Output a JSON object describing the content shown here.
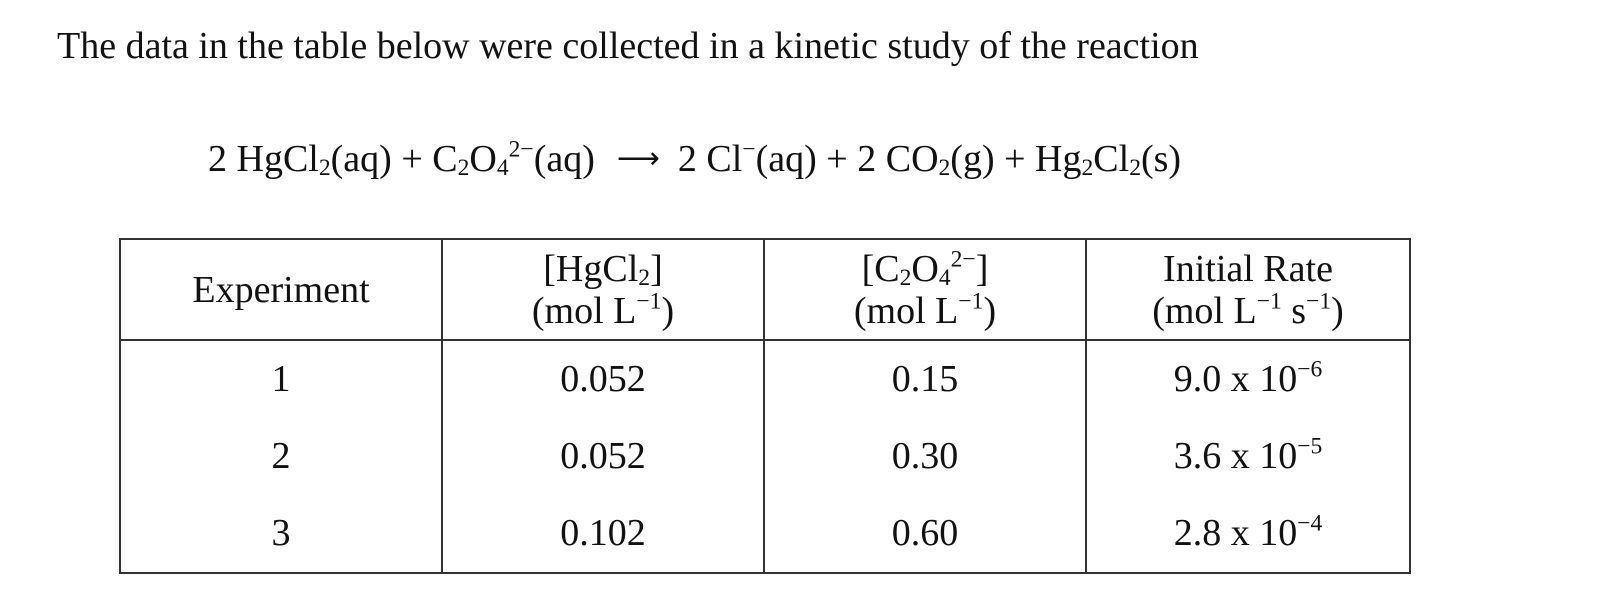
{
  "intro_text": "The data in the table below were collected in a kinetic study of the reaction",
  "equation": {
    "reactants": [
      {
        "coef": "2",
        "formula": "HgCl2",
        "state": "(aq)"
      },
      {
        "coef": "",
        "formula": "C2O4 2-",
        "state": "(aq)"
      }
    ],
    "arrow": "⟶",
    "products": [
      {
        "coef": "2",
        "formula": "Cl-",
        "state": "(aq)"
      },
      {
        "coef": "2",
        "formula": "CO2",
        "state": "(g)"
      },
      {
        "coef": "",
        "formula": "Hg2Cl2",
        "state": "(s)"
      }
    ],
    "parts": {
      "r1_coef": "2",
      "r1_a": "HgCl",
      "r1_sub": "2",
      "r1_state": "(aq)",
      "plus1": "+",
      "r2_a": "C",
      "r2_sub1": "2",
      "r2_b": "O",
      "r2_sub2": "4",
      "r2_sup": "2−",
      "r2_state": "(aq)",
      "arrow": "⟶",
      "p1_coef": "2",
      "p1_a": "Cl",
      "p1_sup": "−",
      "p1_state": "(aq)",
      "plus2": "+",
      "p2_coef": "2",
      "p2_a": "CO",
      "p2_sub": "2",
      "p2_state": "(g)",
      "plus3": "+",
      "p3_a": "Hg",
      "p3_sub1": "2",
      "p3_b": "Cl",
      "p3_sub2": "2",
      "p3_state": "(s)"
    }
  },
  "table": {
    "headers": [
      {
        "line1": "Experiment",
        "line2": ""
      },
      {
        "line1": "[HgCl2]",
        "line2": "(mol L−1)"
      },
      {
        "line1": "[C2O4 2−]",
        "line2": "(mol L−1)"
      },
      {
        "line1": "Initial Rate",
        "line2": "(mol L−1 s−1)"
      }
    ],
    "header_parts": {
      "h0": "Experiment",
      "h1_a": "[HgCl",
      "h1_sub": "2",
      "h1_b": "]",
      "h2_a": "[C",
      "h2_sub1": "2",
      "h2_b": "O",
      "h2_sub2": "4",
      "h2_sup": "2−",
      "h2_c": "]",
      "h3_line1": "Initial Rate",
      "unit_a": "(mol L",
      "unit_sup": "−1",
      "unit_close": ")",
      "rate_unit_a": "(mol L",
      "rate_unit_sup1": "−1",
      "rate_unit_mid": " s",
      "rate_unit_sup2": "−1",
      "rate_unit_close": ")"
    },
    "rows": [
      {
        "experiment": "1",
        "hgcl2": "0.052",
        "c2o4": "0.15",
        "rate_mantissa": "9.0 x 10",
        "rate_exp": "−6",
        "rate": "9.0 x 10^-6"
      },
      {
        "experiment": "2",
        "hgcl2": "0.052",
        "c2o4": "0.30",
        "rate_mantissa": "3.6 x 10",
        "rate_exp": "−5",
        "rate": "3.6 x 10^-5"
      },
      {
        "experiment": "3",
        "hgcl2": "0.102",
        "c2o4": "0.60",
        "rate_mantissa": "2.8 x 10",
        "rate_exp": "−4",
        "rate": "2.8 x 10^-4"
      }
    ]
  }
}
